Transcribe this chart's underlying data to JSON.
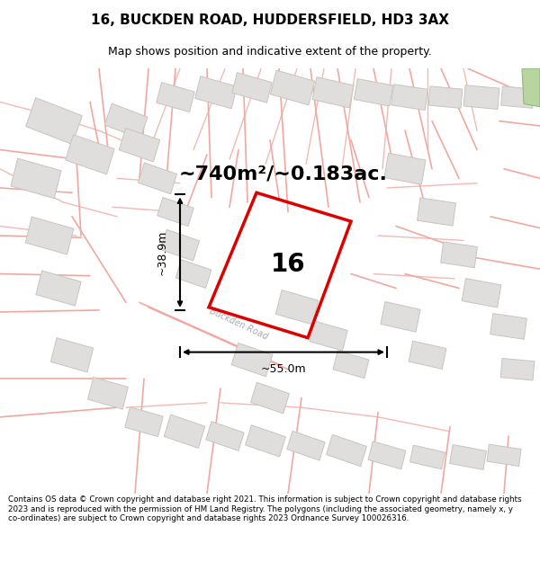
{
  "title": "16, BUCKDEN ROAD, HUDDERSFIELD, HD3 3AX",
  "subtitle": "Map shows position and indicative extent of the property.",
  "area_text": "~740m²/~0.183ac.",
  "property_label": "16",
  "dim_vertical": "~38.9m",
  "dim_horizontal": "~55.0m",
  "road_label": "Buckden Road",
  "footer": "Contains OS data © Crown copyright and database right 2021. This information is subject to Crown copyright and database rights 2023 and is reproduced with the permission of HM Land Registry. The polygons (including the associated geometry, namely x, y co-ordinates) are subject to Crown copyright and database rights 2023 Ordnance Survey 100026316.",
  "map_bg": "#fafaf8",
  "property_color": "#dd0000",
  "road_color": "#f0a8a0",
  "parcel_edge": "#f0a8a0",
  "building_fill": "#e0dedd",
  "building_edge": "#c8c4c0",
  "green_fill": "#b8d4a0",
  "green_edge": "#90b878"
}
